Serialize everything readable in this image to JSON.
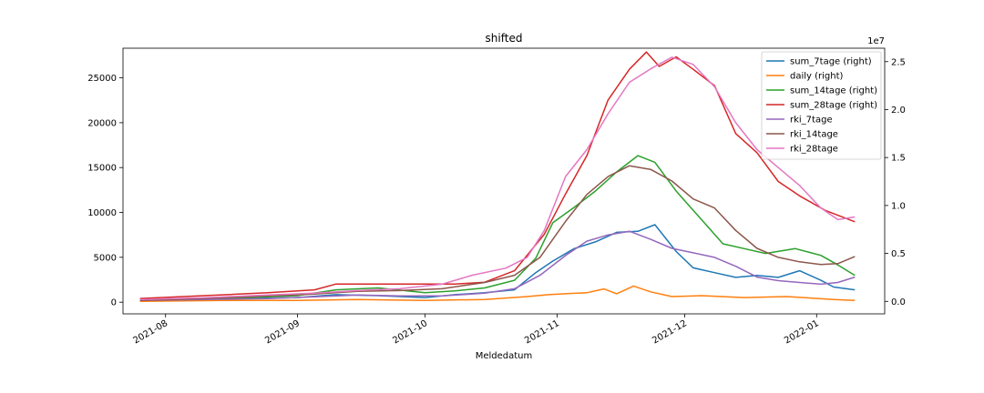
{
  "chart_data": {
    "type": "line",
    "title": "shifted",
    "xlabel": "Meldedatum",
    "ylabel": "",
    "y2_offset_label": "1e7",
    "grid": false,
    "legend_placement": "top-right",
    "x_ticks": [
      "2021-08-01",
      "2021-09-01",
      "2021-10-01",
      "2021-11-01",
      "2021-12-01",
      "2022-01-01"
    ],
    "x_tick_labels": [
      "2021-08",
      "2021-09",
      "2021-10",
      "2021-11",
      "2021-12",
      "2022-01"
    ],
    "xlim": [
      "2021-07-22",
      "2022-01-17"
    ],
    "ylim": [
      -1300,
      28300
    ],
    "y_ticks": [
      0,
      5000,
      10000,
      15000,
      20000,
      25000
    ],
    "y_tick_labels": [
      "0",
      "5000",
      "10000",
      "15000",
      "20000",
      "25000"
    ],
    "y2lim": [
      -0.13,
      2.64
    ],
    "y2_ticks": [
      0,
      0.5,
      1.0,
      1.5,
      2.0,
      2.5
    ],
    "y2_tick_labels": [
      "0.0",
      "0.5",
      "1.0",
      "1.5",
      "2.0",
      "2.5"
    ],
    "series": [
      {
        "name": "sum_7tage (right)",
        "color": "#1f77b4",
        "axis": "right",
        "points": [
          [
            "2021-07-26",
            0.01
          ],
          [
            "2021-08-10",
            0.02
          ],
          [
            "2021-08-20",
            0.03
          ],
          [
            "2021-09-01",
            0.04
          ],
          [
            "2021-09-10",
            0.07
          ],
          [
            "2021-09-20",
            0.06
          ],
          [
            "2021-10-01",
            0.04
          ],
          [
            "2021-10-08",
            0.07
          ],
          [
            "2021-10-15",
            0.09
          ],
          [
            "2021-10-22",
            0.12
          ],
          [
            "2021-10-27",
            0.3
          ],
          [
            "2021-10-31",
            0.42
          ],
          [
            "2021-11-05",
            0.55
          ],
          [
            "2021-11-10",
            0.62
          ],
          [
            "2021-11-15",
            0.72
          ],
          [
            "2021-11-20",
            0.73
          ],
          [
            "2021-11-24",
            0.8
          ],
          [
            "2021-11-29",
            0.52
          ],
          [
            "2021-12-03",
            0.35
          ],
          [
            "2021-12-08",
            0.3
          ],
          [
            "2021-12-13",
            0.25
          ],
          [
            "2021-12-18",
            0.27
          ],
          [
            "2021-12-23",
            0.25
          ],
          [
            "2021-12-28",
            0.32
          ],
          [
            "2022-01-02",
            0.22
          ],
          [
            "2022-01-05",
            0.15
          ],
          [
            "2022-01-10",
            0.12
          ]
        ]
      },
      {
        "name": "daily (right)",
        "color": "#ff7f0e",
        "axis": "right",
        "points": [
          [
            "2021-07-26",
            0.0
          ],
          [
            "2021-08-15",
            0.01
          ],
          [
            "2021-09-01",
            0.01
          ],
          [
            "2021-09-15",
            0.02
          ],
          [
            "2021-10-01",
            0.01
          ],
          [
            "2021-10-15",
            0.02
          ],
          [
            "2021-10-25",
            0.05
          ],
          [
            "2021-10-30",
            0.07
          ],
          [
            "2021-11-03",
            0.08
          ],
          [
            "2021-11-08",
            0.09
          ],
          [
            "2021-11-12",
            0.13
          ],
          [
            "2021-11-15",
            0.08
          ],
          [
            "2021-11-19",
            0.16
          ],
          [
            "2021-11-23",
            0.1
          ],
          [
            "2021-11-28",
            0.05
          ],
          [
            "2021-12-05",
            0.06
          ],
          [
            "2021-12-15",
            0.04
          ],
          [
            "2021-12-25",
            0.05
          ],
          [
            "2022-01-05",
            0.02
          ],
          [
            "2022-01-10",
            0.01
          ]
        ]
      },
      {
        "name": "sum_14tage (right)",
        "color": "#2ca02c",
        "axis": "right",
        "points": [
          [
            "2021-07-26",
            0.02
          ],
          [
            "2021-08-10",
            0.03
          ],
          [
            "2021-08-20",
            0.04
          ],
          [
            "2021-09-01",
            0.06
          ],
          [
            "2021-09-10",
            0.12
          ],
          [
            "2021-09-20",
            0.14
          ],
          [
            "2021-10-01",
            0.09
          ],
          [
            "2021-10-08",
            0.11
          ],
          [
            "2021-10-15",
            0.14
          ],
          [
            "2021-10-22",
            0.22
          ],
          [
            "2021-10-27",
            0.45
          ],
          [
            "2021-10-31",
            0.82
          ],
          [
            "2021-11-05",
            0.98
          ],
          [
            "2021-11-10",
            1.15
          ],
          [
            "2021-11-15",
            1.35
          ],
          [
            "2021-11-20",
            1.52
          ],
          [
            "2021-11-24",
            1.45
          ],
          [
            "2021-11-29",
            1.15
          ],
          [
            "2021-12-04",
            0.9
          ],
          [
            "2021-12-10",
            0.6
          ],
          [
            "2021-12-15",
            0.55
          ],
          [
            "2021-12-20",
            0.5
          ],
          [
            "2021-12-27",
            0.55
          ],
          [
            "2022-01-02",
            0.48
          ],
          [
            "2022-01-06",
            0.38
          ],
          [
            "2022-01-10",
            0.27
          ]
        ]
      },
      {
        "name": "sum_28tage (right)",
        "color": "#d62728",
        "axis": "right",
        "points": [
          [
            "2021-07-26",
            0.03
          ],
          [
            "2021-08-10",
            0.06
          ],
          [
            "2021-08-25",
            0.09
          ],
          [
            "2021-09-05",
            0.12
          ],
          [
            "2021-09-10",
            0.18
          ],
          [
            "2021-09-20",
            0.18
          ],
          [
            "2021-10-01",
            0.18
          ],
          [
            "2021-10-08",
            0.18
          ],
          [
            "2021-10-15",
            0.2
          ],
          [
            "2021-10-22",
            0.32
          ],
          [
            "2021-10-29",
            0.7
          ],
          [
            "2021-11-03",
            1.12
          ],
          [
            "2021-11-08",
            1.52
          ],
          [
            "2021-11-13",
            2.1
          ],
          [
            "2021-11-18",
            2.42
          ],
          [
            "2021-11-22",
            2.6
          ],
          [
            "2021-11-25",
            2.45
          ],
          [
            "2021-11-29",
            2.55
          ],
          [
            "2021-12-03",
            2.42
          ],
          [
            "2021-12-08",
            2.25
          ],
          [
            "2021-12-13",
            1.75
          ],
          [
            "2021-12-18",
            1.55
          ],
          [
            "2021-12-23",
            1.25
          ],
          [
            "2021-12-28",
            1.1
          ],
          [
            "2022-01-03",
            0.95
          ],
          [
            "2022-01-10",
            0.83
          ]
        ]
      },
      {
        "name": "rki_7tage",
        "color": "#9467bd",
        "axis": "left",
        "points": [
          [
            "2021-07-26",
            200
          ],
          [
            "2021-08-10",
            300
          ],
          [
            "2021-08-25",
            400
          ],
          [
            "2021-09-05",
            600
          ],
          [
            "2021-09-15",
            800
          ],
          [
            "2021-09-25",
            700
          ],
          [
            "2021-10-05",
            700
          ],
          [
            "2021-10-15",
            1000
          ],
          [
            "2021-10-22",
            1500
          ],
          [
            "2021-10-28",
            3000
          ],
          [
            "2021-11-03",
            5200
          ],
          [
            "2021-11-08",
            6800
          ],
          [
            "2021-11-13",
            7500
          ],
          [
            "2021-11-18",
            7900
          ],
          [
            "2021-11-23",
            7000
          ],
          [
            "2021-11-28",
            6000
          ],
          [
            "2021-12-03",
            5500
          ],
          [
            "2021-12-08",
            5000
          ],
          [
            "2021-12-13",
            4000
          ],
          [
            "2021-12-18",
            2800
          ],
          [
            "2021-12-23",
            2400
          ],
          [
            "2021-12-28",
            2200
          ],
          [
            "2022-01-02",
            2000
          ],
          [
            "2022-01-06",
            2200
          ],
          [
            "2022-01-10",
            2800
          ]
        ]
      },
      {
        "name": "rki_14tage",
        "color": "#8c564b",
        "axis": "left",
        "points": [
          [
            "2021-07-26",
            200
          ],
          [
            "2021-08-10",
            400
          ],
          [
            "2021-08-25",
            700
          ],
          [
            "2021-09-05",
            900
          ],
          [
            "2021-09-15",
            1200
          ],
          [
            "2021-09-25",
            1300
          ],
          [
            "2021-10-05",
            1500
          ],
          [
            "2021-10-15",
            2200
          ],
          [
            "2021-10-22",
            3000
          ],
          [
            "2021-10-28",
            5000
          ],
          [
            "2021-11-03",
            9000
          ],
          [
            "2021-11-08",
            12000
          ],
          [
            "2021-11-13",
            14000
          ],
          [
            "2021-11-18",
            15200
          ],
          [
            "2021-11-23",
            14800
          ],
          [
            "2021-11-28",
            13500
          ],
          [
            "2021-12-03",
            11500
          ],
          [
            "2021-12-08",
            10500
          ],
          [
            "2021-12-13",
            8000
          ],
          [
            "2021-12-18",
            6000
          ],
          [
            "2021-12-23",
            5000
          ],
          [
            "2021-12-28",
            4500
          ],
          [
            "2022-01-02",
            4200
          ],
          [
            "2022-01-06",
            4300
          ],
          [
            "2022-01-10",
            5100
          ]
        ]
      },
      {
        "name": "rki_28tage",
        "color": "#e377c2",
        "axis": "left",
        "points": [
          [
            "2021-07-26",
            300
          ],
          [
            "2021-08-10",
            500
          ],
          [
            "2021-08-25",
            800
          ],
          [
            "2021-09-05",
            1000
          ],
          [
            "2021-09-15",
            1300
          ],
          [
            "2021-09-25",
            1500
          ],
          [
            "2021-10-05",
            2000
          ],
          [
            "2021-10-12",
            3000
          ],
          [
            "2021-10-20",
            3800
          ],
          [
            "2021-10-25",
            5000
          ],
          [
            "2021-10-29",
            8000
          ],
          [
            "2021-11-03",
            14000
          ],
          [
            "2021-11-08",
            17000
          ],
          [
            "2021-11-13",
            21000
          ],
          [
            "2021-11-18",
            24500
          ],
          [
            "2021-11-23",
            26000
          ],
          [
            "2021-11-28",
            27300
          ],
          [
            "2021-12-03",
            26500
          ],
          [
            "2021-12-08",
            24000
          ],
          [
            "2021-12-13",
            20000
          ],
          [
            "2021-12-18",
            17000
          ],
          [
            "2021-12-23",
            15000
          ],
          [
            "2021-12-28",
            13000
          ],
          [
            "2022-01-02",
            10500
          ],
          [
            "2022-01-06",
            9200
          ],
          [
            "2022-01-10",
            9500
          ]
        ]
      }
    ]
  }
}
